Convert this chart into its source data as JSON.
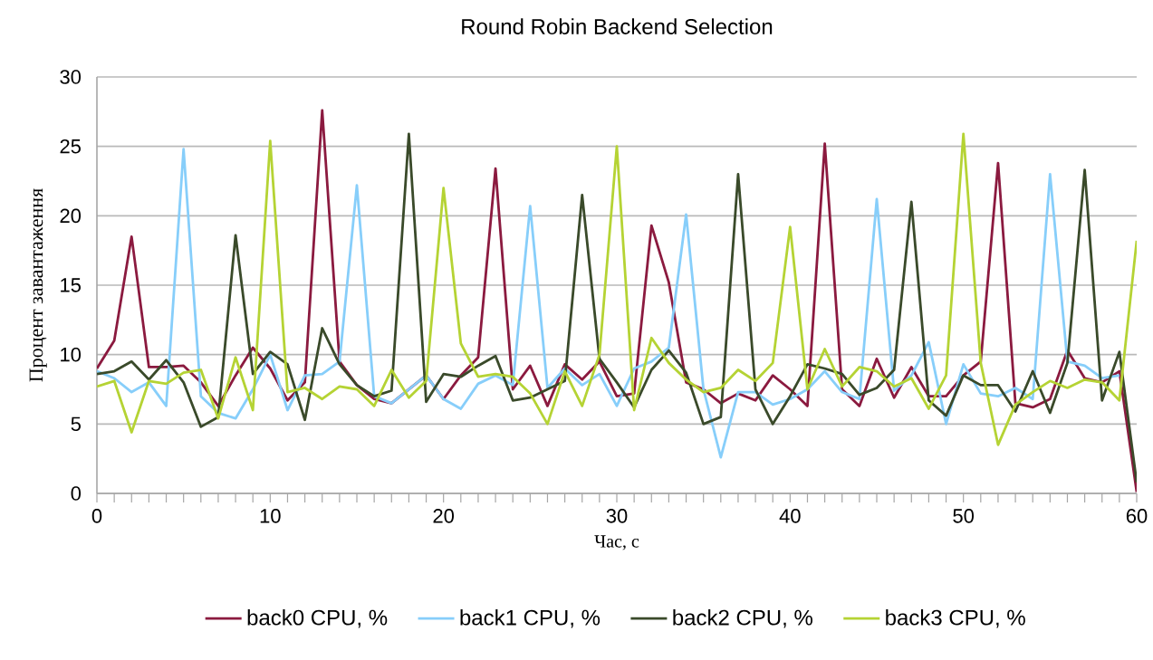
{
  "chart_data": {
    "type": "line",
    "title": "Round Robin Backend Selection",
    "xlabel": "Час, с",
    "ylabel": "Процент завантаження",
    "x": [
      0,
      1,
      2,
      3,
      4,
      5,
      6,
      7,
      8,
      9,
      10,
      11,
      12,
      13,
      14,
      15,
      16,
      17,
      18,
      19,
      20,
      21,
      22,
      23,
      24,
      25,
      26,
      27,
      28,
      29,
      30,
      31,
      32,
      33,
      34,
      35,
      36,
      37,
      38,
      39,
      40,
      41,
      42,
      43,
      44,
      45,
      46,
      47,
      48,
      49,
      50,
      51,
      52,
      53,
      54,
      55,
      56,
      57,
      58,
      59,
      60
    ],
    "series": [
      {
        "name": "back0 CPU, %",
        "color": "#8b1a3f",
        "values": [
          9,
          11,
          18.5,
          9.1,
          9.1,
          9.2,
          8,
          6.3,
          8.5,
          10.5,
          9,
          6.7,
          8,
          27.6,
          9.5,
          7.8,
          6.8,
          6.5,
          null,
          8.5,
          6.8,
          8.5,
          9.8,
          23.4,
          7.5,
          9.2,
          6.3,
          9.3,
          8.2,
          9.5,
          7,
          7.2,
          19.3,
          15.2,
          8,
          7.5,
          6.5,
          7.2,
          6.7,
          8.5,
          7.5,
          6.3,
          25.2,
          7.5,
          6.3,
          9.7,
          6.9,
          9.1,
          7,
          7,
          8.5,
          9.5,
          23.8,
          6.5,
          6.2,
          6.8,
          10.3,
          8.3,
          8,
          8.8,
          0.1
        ]
      },
      {
        "name": "back1 CPU, %",
        "color": "#87cefa",
        "values": [
          8.8,
          8.3,
          7.3,
          8,
          6.3,
          24.8,
          7,
          5.8,
          5.4,
          7.5,
          10,
          6,
          8.5,
          8.6,
          9.5,
          22.2,
          7,
          6.5,
          7.5,
          8.5,
          6.8,
          6.1,
          7.9,
          8.5,
          7.8,
          20.7,
          7.6,
          9,
          7.8,
          8.6,
          6.3,
          9,
          9.5,
          10.5,
          20.1,
          7.5,
          2.6,
          7.3,
          7.3,
          6.4,
          6.8,
          7.5,
          8.8,
          7.3,
          6.8,
          21.2,
          7.4,
          8.5,
          10.9,
          5,
          9.3,
          7.2,
          7,
          7.6,
          6.8,
          23,
          9.5,
          9.2,
          8.3,
          8.5,
          null
        ]
      },
      {
        "name": "back2 CPU, %",
        "color": "#3a4a2a",
        "values": [
          8.6,
          8.8,
          9.5,
          8.2,
          9.6,
          8,
          4.8,
          5.5,
          18.6,
          8.6,
          10.2,
          9.3,
          5.3,
          11.9,
          9.3,
          7.8,
          7,
          7.4,
          25.9,
          6.6,
          8.6,
          8.4,
          9.2,
          9.9,
          6.7,
          6.9,
          7.5,
          8.1,
          21.5,
          9.7,
          8,
          6.2,
          8.9,
          10.3,
          8.7,
          5,
          5.5,
          23,
          7.5,
          5,
          7,
          9.3,
          9,
          8.6,
          7.1,
          7.6,
          8.9,
          21,
          6.7,
          5.6,
          8.5,
          7.8,
          7.8,
          5.9,
          8.8,
          5.8,
          9.4,
          23.3,
          6.7,
          10.2,
          0.8
        ]
      },
      {
        "name": "back3 CPU, %",
        "color": "#b5d334",
        "values": [
          7.7,
          8.1,
          4.4,
          8.1,
          7.9,
          8.7,
          8.9,
          5.4,
          9.8,
          6,
          25.4,
          7.3,
          7.6,
          6.8,
          7.7,
          7.5,
          6.3,
          8.9,
          6.9,
          8.1,
          22,
          10.8,
          8.4,
          8.6,
          8.4,
          7.2,
          5,
          8.8,
          6.3,
          10,
          25,
          6,
          11.2,
          9.4,
          8.2,
          7.3,
          7.6,
          8.9,
          8.1,
          9.4,
          19.2,
          7.5,
          10.4,
          7.7,
          9.1,
          8.8,
          7.7,
          8.3,
          6.1,
          8.5,
          25.9,
          9.4,
          3.5,
          6.4,
          7.3,
          8.1,
          7.6,
          8.2,
          8,
          6.7,
          18.2
        ]
      }
    ],
    "xlim": [
      0,
      60
    ],
    "ylim": [
      0,
      30
    ],
    "xticks": [
      0,
      {
        "value": 1,
        "label": null
      },
      {
        "value": 2,
        "label": null
      },
      {
        "value": 3,
        "label": null
      },
      {
        "value": 4,
        "label": null
      },
      {
        "value": 5,
        "label": null
      },
      {
        "value": 6,
        "label": null
      },
      {
        "value": 7,
        "label": null
      },
      {
        "value": 8,
        "label": null
      },
      {
        "value": 9,
        "label": null
      },
      10,
      {
        "value": 11,
        "label": null
      },
      {
        "value": 12,
        "label": null
      },
      {
        "value": 13,
        "label": null
      },
      {
        "value": 14,
        "label": null
      },
      {
        "value": 15,
        "label": null
      },
      {
        "value": 16,
        "label": null
      },
      {
        "value": 17,
        "label": null
      },
      {
        "value": 18,
        "label": null
      },
      {
        "value": 19,
        "label": null
      },
      20,
      {
        "value": 21,
        "label": null
      },
      {
        "value": 22,
        "label": null
      },
      {
        "value": 23,
        "label": null
      },
      {
        "value": 24,
        "label": null
      },
      {
        "value": 25,
        "label": null
      },
      {
        "value": 26,
        "label": null
      },
      {
        "value": 27,
        "label": null
      },
      {
        "value": 28,
        "label": null
      },
      {
        "value": 29,
        "label": null
      },
      30,
      {
        "value": 31,
        "label": null
      },
      {
        "value": 32,
        "label": null
      },
      {
        "value": 33,
        "label": null
      },
      {
        "value": 34,
        "label": null
      },
      {
        "value": 35,
        "label": null
      },
      {
        "value": 36,
        "label": null
      },
      {
        "value": 37,
        "label": null
      },
      {
        "value": 38,
        "label": null
      },
      {
        "value": 39,
        "label": null
      },
      40,
      {
        "value": 41,
        "label": null
      },
      {
        "value": 42,
        "label": null
      },
      {
        "value": 43,
        "label": null
      },
      {
        "value": 44,
        "label": null
      },
      {
        "value": 45,
        "label": null
      },
      {
        "value": 46,
        "label": null
      },
      {
        "value": 47,
        "label": null
      },
      {
        "value": 48,
        "label": null
      },
      {
        "value": 49,
        "label": null
      },
      50,
      {
        "value": 51,
        "label": null
      },
      {
        "value": 52,
        "label": null
      },
      {
        "value": 53,
        "label": null
      },
      {
        "value": 54,
        "label": null
      },
      {
        "value": 55,
        "label": null
      },
      {
        "value": 56,
        "label": null
      },
      {
        "value": 57,
        "label": null
      },
      {
        "value": 58,
        "label": null
      },
      {
        "value": 59,
        "label": null
      },
      60
    ],
    "yticks": [
      0,
      5,
      10,
      15,
      20,
      25,
      30
    ],
    "grid": "y",
    "legend": "bottom",
    "marker": "none",
    "line_style": "solid"
  }
}
